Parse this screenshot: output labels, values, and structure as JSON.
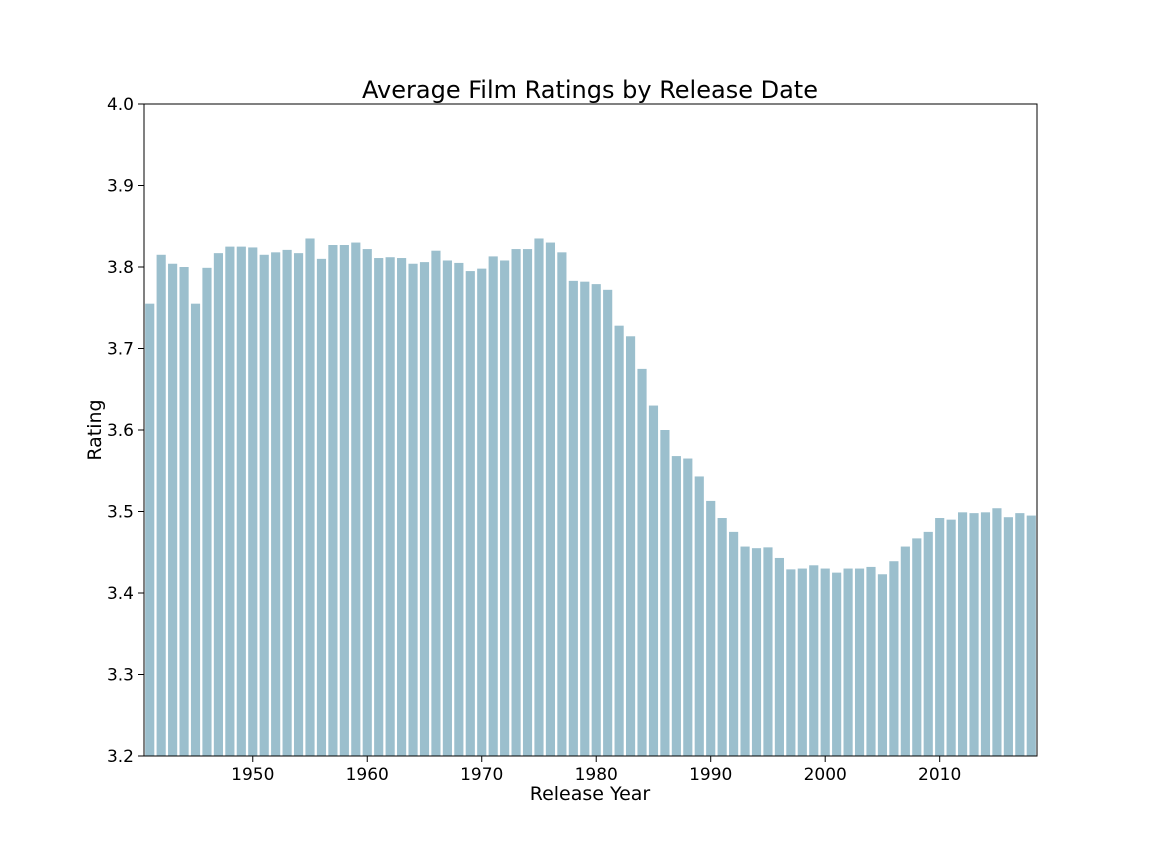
{
  "chart_data": {
    "type": "bar",
    "title": "Average Film Ratings by Release Date",
    "xlabel": "Release Year",
    "ylabel": "Rating",
    "ylim": [
      3.2,
      4.0
    ],
    "yticks": [
      3.2,
      3.3,
      3.4,
      3.5,
      3.6,
      3.7,
      3.8,
      3.9,
      4.0
    ],
    "xticks": [
      1950,
      1960,
      1970,
      1980,
      1990,
      2000,
      2010
    ],
    "x": [
      1941,
      1942,
      1943,
      1944,
      1945,
      1946,
      1947,
      1948,
      1949,
      1950,
      1951,
      1952,
      1953,
      1954,
      1955,
      1956,
      1957,
      1958,
      1959,
      1960,
      1961,
      1962,
      1963,
      1964,
      1965,
      1966,
      1967,
      1968,
      1969,
      1970,
      1971,
      1972,
      1973,
      1974,
      1975,
      1976,
      1977,
      1978,
      1979,
      1980,
      1981,
      1982,
      1983,
      1984,
      1985,
      1986,
      1987,
      1988,
      1989,
      1990,
      1991,
      1992,
      1993,
      1994,
      1995,
      1996,
      1997,
      1998,
      1999,
      2000,
      2001,
      2002,
      2003,
      2004,
      2005,
      2006,
      2007,
      2008,
      2009,
      2010,
      2011,
      2012,
      2013,
      2014,
      2015,
      2016,
      2017,
      2018
    ],
    "values": [
      3.755,
      3.815,
      3.804,
      3.8,
      3.755,
      3.799,
      3.817,
      3.825,
      3.825,
      3.824,
      3.815,
      3.818,
      3.821,
      3.817,
      3.835,
      3.81,
      3.827,
      3.827,
      3.83,
      3.822,
      3.811,
      3.812,
      3.811,
      3.804,
      3.806,
      3.82,
      3.808,
      3.805,
      3.795,
      3.798,
      3.813,
      3.808,
      3.822,
      3.822,
      3.835,
      3.83,
      3.818,
      3.783,
      3.782,
      3.779,
      3.772,
      3.728,
      3.715,
      3.675,
      3.63,
      3.6,
      3.568,
      3.565,
      3.543,
      3.513,
      3.492,
      3.475,
      3.457,
      3.455,
      3.456,
      3.443,
      3.429,
      3.43,
      3.434,
      3.43,
      3.425,
      3.43,
      3.43,
      3.432,
      3.423,
      3.439,
      3.457,
      3.467,
      3.475,
      3.492,
      3.49,
      3.499,
      3.498,
      3.499,
      3.504,
      3.493,
      3.498,
      3.495
    ],
    "bar_color": "#9bbfcd",
    "grid": false,
    "legend": "none"
  }
}
